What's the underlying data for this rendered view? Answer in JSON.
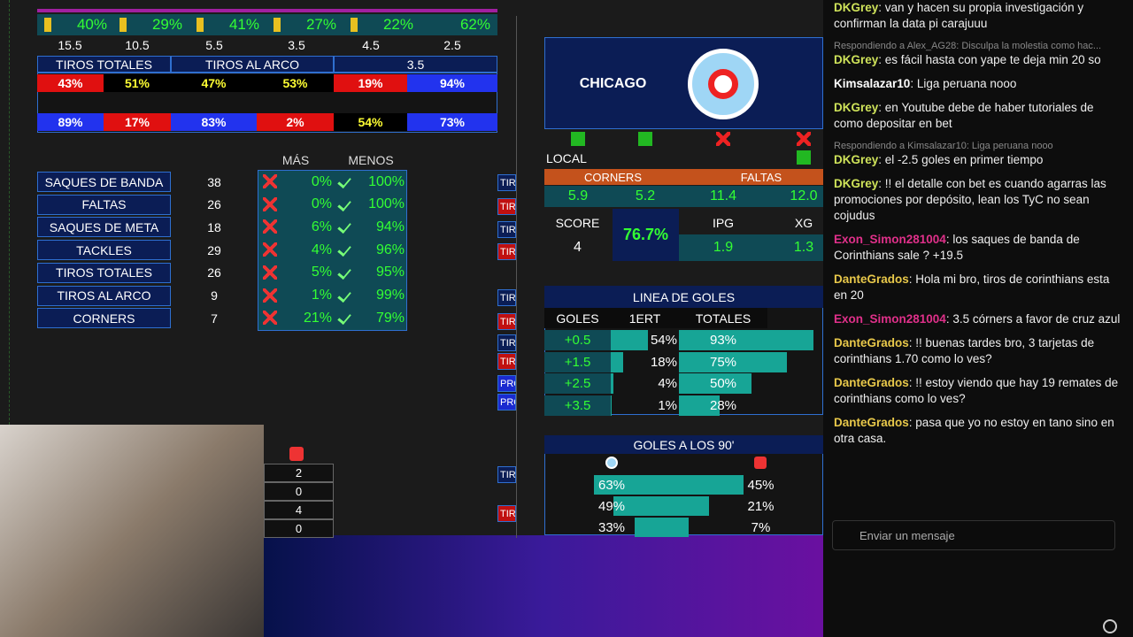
{
  "top_bar": {
    "percents": [
      "40%",
      "29%",
      "41%",
      "27%",
      "22%",
      "62%"
    ],
    "lines": [
      "15.5",
      "10.5",
      "5.5",
      "3.5",
      "4.5",
      "2.5"
    ]
  },
  "tiros_table": {
    "headers": [
      "TIROS TOTALES",
      "TIROS AL ARCO",
      "3.5"
    ],
    "row1": [
      "43%",
      "51%",
      "47%",
      "53%",
      "19%",
      "94%"
    ],
    "row2": [
      "89%",
      "17%",
      "83%",
      "2%",
      "54%",
      "73%"
    ]
  },
  "stats": {
    "headers": [
      "MÁS",
      "MENOS"
    ],
    "rows": [
      [
        "SAQUES DE BANDA",
        "38",
        "0%",
        "100%"
      ],
      [
        "FALTAS",
        "26",
        "0%",
        "100%"
      ],
      [
        "SAQUES DE META",
        "18",
        "6%",
        "94%"
      ],
      [
        "TACKLES",
        "29",
        "4%",
        "96%"
      ],
      [
        "TIROS TOTALES",
        "26",
        "5%",
        "95%"
      ],
      [
        "TIROS AL ARCO",
        "9",
        "1%",
        "99%"
      ],
      [
        "CORNERS",
        "7",
        "21%",
        "79%"
      ]
    ]
  },
  "team": {
    "name": "CHICAGO",
    "local": "LOCAL",
    "headers": [
      "CORNERS",
      "FALTAS"
    ],
    "values": [
      "5.9",
      "5.2",
      "11.4",
      "12.0"
    ],
    "score_label": "SCORE",
    "score": "4",
    "pct": "76.7%",
    "ipg_label": "IPG",
    "ipg": "1.9",
    "xg_label": "XG",
    "xg": "1.3"
  },
  "linea_goles": {
    "title": "LINEA DE GOLES",
    "headers": [
      "GOLES",
      "1ERT",
      "TOTALES"
    ],
    "rows": [
      [
        "+0.5",
        "54%",
        "93%"
      ],
      [
        "+1.5",
        "18%",
        "75%"
      ],
      [
        "+2.5",
        "4%",
        "50%"
      ],
      [
        "+3.5",
        "1%",
        "28%"
      ]
    ]
  },
  "goles_90": {
    "title": "GOLES A LOS 90'",
    "rows": [
      [
        "63%",
        "45%"
      ],
      [
        "49%",
        "21%"
      ],
      [
        "33%",
        "7%"
      ]
    ]
  },
  "side_col": [
    "2",
    "0",
    "4",
    "0"
  ],
  "side_labels": [
    "TIRO",
    "TIRO",
    "TIRO",
    "TIRO",
    "TIRO",
    "TIRO",
    "TIRO",
    "TIRO",
    "PRO",
    "PRO",
    "TIRO",
    "TIRO"
  ],
  "chat": {
    "messages": [
      {
        "user": "DKGrey",
        "text": "van y hacen su propia investigación y confirman la data pi carajuuu"
      },
      {
        "reply": "Respondiendo a Alex_AG28: Disculpa la molestia como hac...",
        "user": "DKGrey",
        "text": "es fácil hasta con yape te deja min 20 so"
      },
      {
        "user": "Kimsalazar10",
        "text": "Liga peruana nooo"
      },
      {
        "user": "DKGrey",
        "text": "en Youtube debe de haber tutoriales de como depositar en bet"
      },
      {
        "reply": "Respondiendo a Kimsalazar10: Liga peruana nooo",
        "user": "DKGrey",
        "text": "el -2.5 goles en primer tiempo"
      },
      {
        "user": "DKGrey",
        "text": "!! el detalle con bet es cuando agarras las promociones por depósito, lean los TyC no sean cojudus"
      },
      {
        "user": "Exon_Simon281004",
        "text": "los saques de banda de Corinthians sale ? +19.5"
      },
      {
        "user": "DanteGrados",
        "text": "Hola mi bro, tiros de corinthians esta en 20"
      },
      {
        "user": "Exon_Simon281004",
        "text": "3.5 córners a favor de cruz azul"
      },
      {
        "user": "DanteGrados",
        "text": "!! buenas tardes bro, 3 tarjetas de corinthians 1.70 como lo ves?"
      },
      {
        "user": "DanteGrados",
        "text": "!! estoy viendo que hay 19 remates de corinthians como lo ves?"
      },
      {
        "user": "DanteGrados",
        "text": "pasa que yo no estoy en tano sino en otra casa."
      }
    ],
    "input": "Enviar un mensaje"
  }
}
